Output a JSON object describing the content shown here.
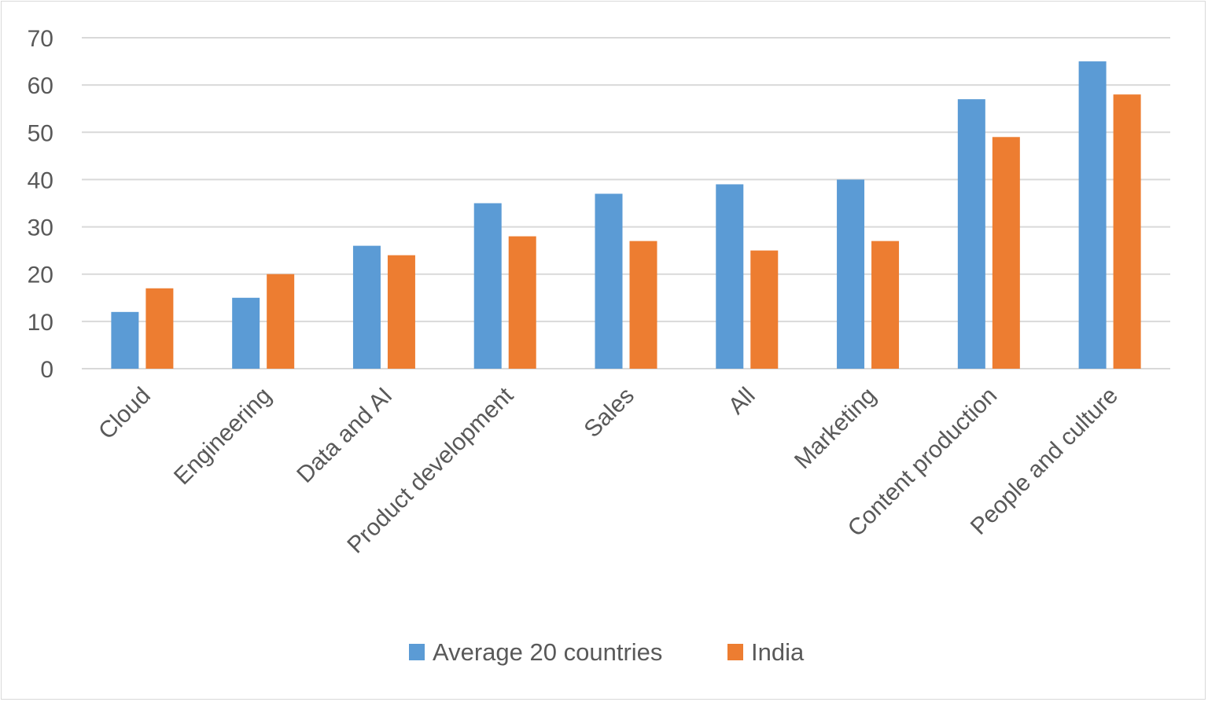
{
  "chart_data": {
    "type": "bar",
    "title": "",
    "xlabel": "",
    "ylabel": "",
    "ylim": [
      0,
      70
    ],
    "yticks": [
      "0",
      "10",
      "20",
      "30",
      "40",
      "50",
      "60",
      "70"
    ],
    "grid": true,
    "legend_position": "bottom",
    "categories": [
      "Cloud",
      "Engineering",
      "Data and AI",
      "Product development",
      "Sales",
      "All",
      "Marketing",
      "Content production",
      "People and culture"
    ],
    "series": [
      {
        "name": "Average 20 countries",
        "color": "#5B9BD5",
        "values": [
          12,
          15,
          26,
          35,
          37,
          39,
          40,
          57,
          65
        ]
      },
      {
        "name": "India",
        "color": "#ED7D31",
        "values": [
          17,
          20,
          24,
          28,
          27,
          25,
          27,
          49,
          58
        ]
      }
    ]
  }
}
